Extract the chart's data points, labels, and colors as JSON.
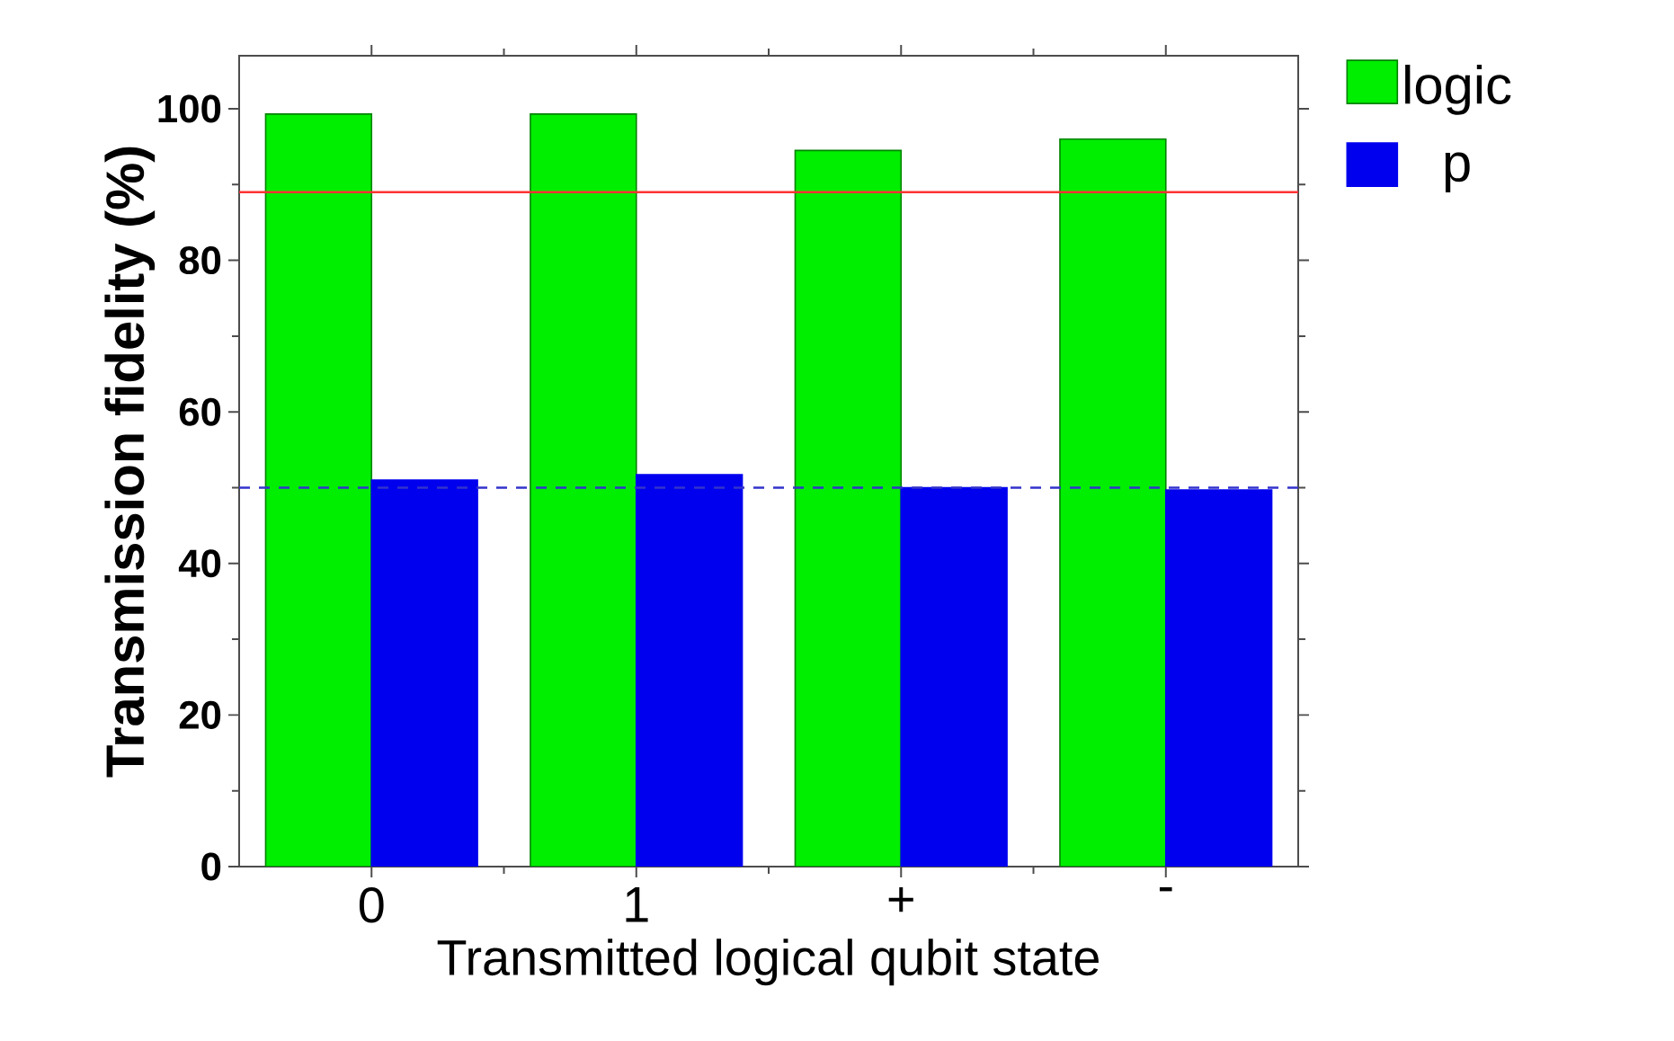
{
  "chart_data": {
    "type": "bar",
    "categories": [
      "0",
      "1",
      "+",
      "-"
    ],
    "xlabel": "Transmitted logical qubit state",
    "ylabel": "Transmission fidelity (%)",
    "series": [
      {
        "name": "logic",
        "color": "#00ee00",
        "values": [
          99.3,
          99.3,
          94.5,
          96.0
        ]
      },
      {
        "name": "p",
        "color": "#0000ee",
        "values": [
          51.0,
          51.7,
          50.0,
          49.7
        ]
      }
    ],
    "ylim": [
      0,
      107
    ],
    "yticks": [
      0,
      20,
      40,
      60,
      80,
      100
    ],
    "ref_lines": [
      {
        "axis": "y",
        "value": 89,
        "color": "#ff3333",
        "line_style": "solid"
      },
      {
        "axis": "y",
        "value": 50,
        "color": "#3333cc",
        "line_style": "dashed"
      }
    ],
    "legend": "right"
  }
}
